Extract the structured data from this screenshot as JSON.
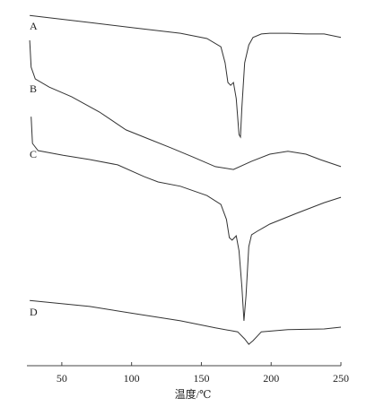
{
  "chart_data": {
    "type": "line",
    "xlabel": "温度/℃",
    "xlim": [
      25,
      250
    ],
    "ylim": [
      0,
      100
    ],
    "xticks": [
      50,
      100,
      150,
      200,
      250
    ],
    "series": [
      {
        "name": "A",
        "color": "#333333",
        "x": [
          27,
          70,
          102,
          135,
          154,
          164,
          167,
          169,
          171,
          173,
          175,
          177,
          178,
          179,
          181,
          184,
          187,
          193,
          199,
          212,
          225,
          238,
          250
        ],
        "values": [
          98.2,
          96.2,
          94.7,
          93.2,
          91.7,
          89.4,
          84.9,
          79.4,
          78.6,
          79.4,
          74.9,
          64.8,
          64.1,
          72.4,
          84.9,
          89.9,
          92,
          93,
          93.2,
          93.2,
          93,
          93,
          92
        ]
      },
      {
        "name": "B",
        "color": "#333333",
        "x": [
          27,
          28,
          31,
          41,
          57,
          77,
          96,
          112,
          128,
          144,
          160,
          173,
          186,
          199,
          212,
          225,
          235,
          250
        ],
        "values": [
          91.2,
          83.7,
          80.4,
          78.1,
          75.4,
          71.1,
          66.1,
          63.6,
          61.1,
          58.5,
          55.8,
          55,
          57.3,
          59.3,
          60.1,
          59.3,
          57.8,
          55.8
        ]
      },
      {
        "name": "C",
        "color": "#333333",
        "x": [
          28,
          29,
          33,
          51,
          70,
          90,
          109,
          119,
          135,
          154,
          164,
          168,
          170,
          172,
          175,
          177,
          179,
          180.5,
          182,
          184,
          186,
          190,
          199,
          218,
          238,
          250
        ],
        "values": [
          69.8,
          62.3,
          60.3,
          59,
          57.8,
          56.3,
          53,
          51.5,
          50.3,
          47.7,
          45.2,
          41,
          35.9,
          35.2,
          36.4,
          32.2,
          22.1,
          12.6,
          19.6,
          33.4,
          36.7,
          37.7,
          39.7,
          42.7,
          45.7,
          47.2
        ]
      },
      {
        "name": "D",
        "color": "#333333",
        "x": [
          27,
          70,
          102,
          135,
          160,
          176,
          181,
          184,
          187,
          193,
          212,
          238,
          250
        ],
        "values": [
          18.3,
          16.6,
          14.6,
          12.6,
          10.6,
          9.5,
          7.5,
          6,
          7,
          9.5,
          10.1,
          10.3,
          10.8
        ]
      }
    ]
  }
}
